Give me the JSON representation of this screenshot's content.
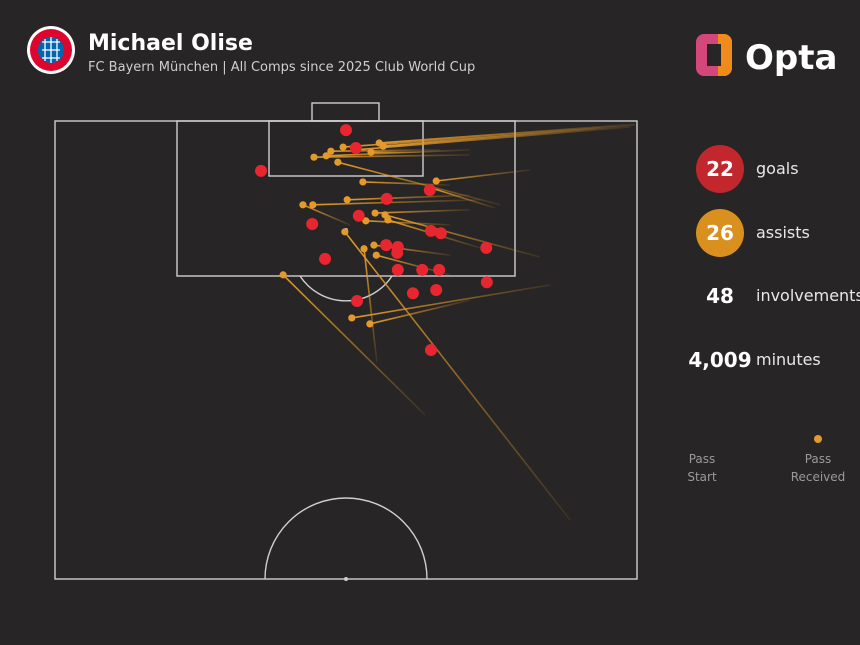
{
  "header": {
    "title": "Michael Olise",
    "subtitle": "FC Bayern München | All Comps since 2025 Club World Cup",
    "brand": "Opta"
  },
  "stats": [
    {
      "value": "22",
      "label": "goals",
      "color": "#c1272d"
    },
    {
      "value": "26",
      "label": "assists",
      "color": "#d9901f"
    },
    {
      "value": "48",
      "label": "involvements"
    },
    {
      "value": "4,009",
      "label": "minutes"
    }
  ],
  "legend": {
    "start": "Pass Start",
    "end": "Pass Received",
    "color": "#e39a2a"
  },
  "pitch": {
    "goal_color": "#e8262f",
    "assist_color": "#e39a2a",
    "goals": [
      [
        50.0,
        2.0
      ],
      [
        51.7,
        5.9
      ],
      [
        35.4,
        10.9
      ],
      [
        64.4,
        15.1
      ],
      [
        57.0,
        17.0
      ],
      [
        44.2,
        22.5
      ],
      [
        52.2,
        20.7
      ],
      [
        64.6,
        24.0
      ],
      [
        66.3,
        24.5
      ],
      [
        74.1,
        27.7
      ],
      [
        56.9,
        27.1
      ],
      [
        58.9,
        27.5
      ],
      [
        58.8,
        28.8
      ],
      [
        46.4,
        30.1
      ],
      [
        58.9,
        32.5
      ],
      [
        63.1,
        32.5
      ],
      [
        66.0,
        32.5
      ],
      [
        74.2,
        35.2
      ],
      [
        65.5,
        36.9
      ],
      [
        61.5,
        37.6
      ],
      [
        51.9,
        39.3
      ],
      [
        64.6,
        50.0
      ]
    ],
    "assists": [
      {
        "start": [
          99.7,
          0.7
        ],
        "end": [
          55.7,
          4.8
        ]
      },
      {
        "start": [
          99.7,
          0.9
        ],
        "end": [
          56.4,
          5.5
        ]
      },
      {
        "start": [
          98.8,
          1.3
        ],
        "end": [
          51.7,
          6.3
        ]
      },
      {
        "start": [
          93.6,
          1.5
        ],
        "end": [
          49.5,
          5.7
        ]
      },
      {
        "start": [
          71.3,
          7.4
        ],
        "end": [
          44.5,
          7.9
        ]
      },
      {
        "start": [
          71.3,
          6.3
        ],
        "end": [
          46.6,
          7.6
        ]
      },
      {
        "start": [
          66.2,
          6.3
        ],
        "end": [
          47.4,
          6.6
        ]
      },
      {
        "start": [
          62.7,
          6.8
        ],
        "end": [
          54.3,
          6.8
        ]
      },
      {
        "start": [
          81.6,
          10.7
        ],
        "end": [
          65.5,
          13.1
        ]
      },
      {
        "start": [
          67.9,
          14.0
        ],
        "end": [
          52.9,
          13.3
        ]
      },
      {
        "start": [
          76.5,
          18.3
        ],
        "end": [
          48.6,
          9.0
        ]
      },
      {
        "start": [
          75.6,
          19.0
        ],
        "end": [
          64.6,
          14.6
        ]
      },
      {
        "start": [
          73.0,
          17.2
        ],
        "end": [
          44.3,
          18.3
        ]
      },
      {
        "start": [
          71.3,
          16.2
        ],
        "end": [
          50.2,
          17.2
        ]
      },
      {
        "start": [
          83.3,
          29.7
        ],
        "end": [
          56.7,
          20.5
        ]
      },
      {
        "start": [
          71.3,
          19.4
        ],
        "end": [
          55.0,
          20.1
        ]
      },
      {
        "start": [
          73.0,
          27.7
        ],
        "end": [
          57.2,
          21.6
        ]
      },
      {
        "start": [
          67.9,
          22.7
        ],
        "end": [
          53.4,
          21.8
        ]
      },
      {
        "start": [
          50.7,
          22.7
        ],
        "end": [
          42.6,
          18.3
        ]
      },
      {
        "start": [
          67.9,
          29.3
        ],
        "end": [
          54.8,
          27.1
        ]
      },
      {
        "start": [
          55.3,
          52.6
        ],
        "end": [
          53.1,
          27.9
        ]
      },
      {
        "start": [
          67.9,
          33.6
        ],
        "end": [
          55.2,
          29.3
        ]
      },
      {
        "start": [
          85.1,
          35.8
        ],
        "end": [
          51.0,
          43.0
        ]
      },
      {
        "start": [
          71.3,
          39.1
        ],
        "end": [
          54.1,
          44.3
        ]
      },
      {
        "start": [
          63.6,
          64.2
        ],
        "end": [
          39.2,
          33.6
        ]
      },
      {
        "start": [
          88.5,
          87.1
        ],
        "end": [
          49.8,
          24.2
        ]
      }
    ]
  }
}
